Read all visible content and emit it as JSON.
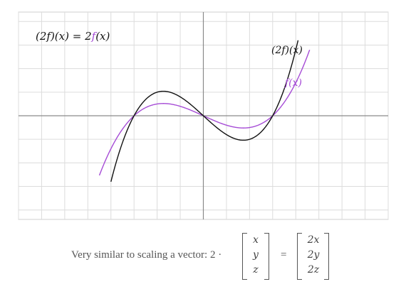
{
  "chart_data": {
    "type": "line",
    "title": "",
    "xlabel": "",
    "ylabel": "",
    "xlim": [
      -8,
      8
    ],
    "ylim": [
      -4.4,
      4.4
    ],
    "grid": true,
    "series": [
      {
        "name": "f(x)",
        "color": "#a64cd6",
        "formula": "0.05*x*(x+3)*(x-3)",
        "x_range": [
          -4.5,
          4.6
        ]
      },
      {
        "name": "(2f)(x)",
        "color": "#111111",
        "formula": "0.1*x*(x+3)*(x-3)",
        "x_range": [
          -4.0,
          4.1
        ]
      }
    ]
  },
  "annotations": {
    "equation_lhs": "(2f)(x) = 2",
    "equation_rhs_f": "f",
    "equation_rhs_arg": "(x)",
    "label_2f": "(2f)(x)",
    "label_f": "f(x)"
  },
  "caption": {
    "text": "Very similar to scaling a vector: 2 ·",
    "dot_separator": "",
    "equals": "=",
    "vector_in": [
      "x",
      "y",
      "z"
    ],
    "vector_out": [
      "2x",
      "2y",
      "2z"
    ]
  }
}
